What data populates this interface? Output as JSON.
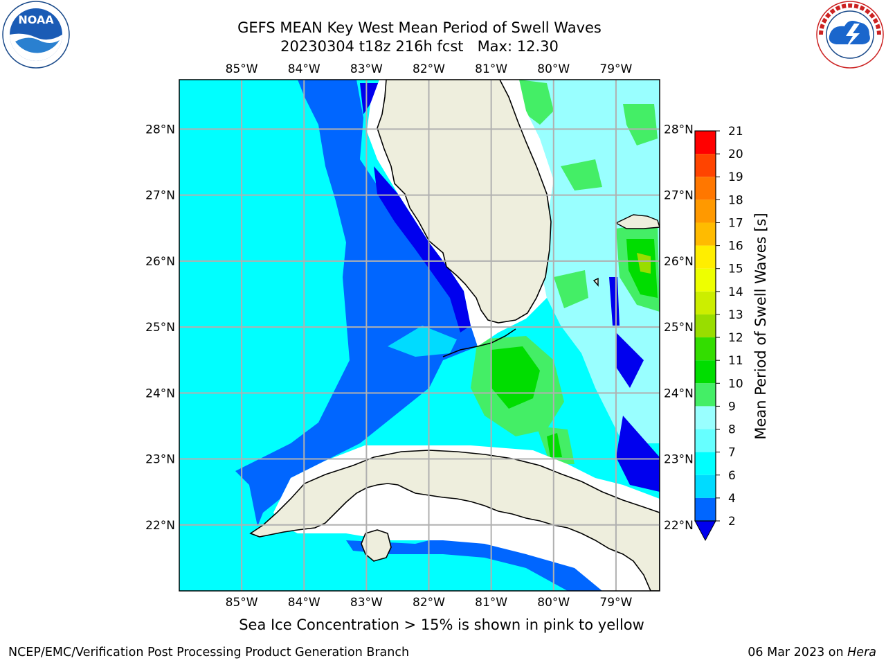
{
  "title_line1": "GEFS MEAN Key West Mean Period of Swell Waves",
  "title_line2": "20230304 t18z 216h fcst   Max: 12.30",
  "map": {
    "lon_labels": [
      "85°W",
      "84°W",
      "83°W",
      "82°W",
      "81°W",
      "80°W",
      "79°W"
    ],
    "lon_values": [
      -85,
      -84,
      -83,
      -82,
      -81,
      -80,
      -79
    ],
    "lat_labels": [
      "28°N",
      "27°N",
      "26°N",
      "25°N",
      "24°N",
      "23°N",
      "22°N"
    ],
    "lat_values": [
      28,
      27,
      26,
      25,
      24,
      23,
      22
    ],
    "lon_range": [
      -86,
      -78.3
    ],
    "lat_range": [
      21,
      28.75
    ],
    "land_color": "#eeeedd",
    "grid_color": "#b0b0b0"
  },
  "colorbar": {
    "label": "Mean Period of Swell Waves [s]",
    "ticks": [
      "2",
      "4",
      "6",
      "7",
      "8",
      "9",
      "10",
      "11",
      "12",
      "13",
      "14",
      "15",
      "16",
      "17",
      "18",
      "19",
      "20",
      "21"
    ],
    "bins": [
      {
        "from": 2,
        "to": 4,
        "color": "#0066ff"
      },
      {
        "from": 4,
        "to": 6,
        "color": "#00dbff"
      },
      {
        "from": 6,
        "to": 7,
        "color": "#00ffff"
      },
      {
        "from": 7,
        "to": 8,
        "color": "#66ffff"
      },
      {
        "from": 8,
        "to": 9,
        "color": "#99ffff"
      },
      {
        "from": 9,
        "to": 10,
        "color": "#44ee66"
      },
      {
        "from": 10,
        "to": 11,
        "color": "#00dd00"
      },
      {
        "from": 11,
        "to": 12,
        "color": "#33dd00"
      },
      {
        "from": 12,
        "to": 13,
        "color": "#99dd00"
      },
      {
        "from": 13,
        "to": 14,
        "color": "#ccee00"
      },
      {
        "from": 14,
        "to": 15,
        "color": "#eeff00"
      },
      {
        "from": 15,
        "to": 16,
        "color": "#ffee00"
      },
      {
        "from": 16,
        "to": 17,
        "color": "#ffbb00"
      },
      {
        "from": 17,
        "to": 18,
        "color": "#ff9900"
      },
      {
        "from": 18,
        "to": 19,
        "color": "#ff7700"
      },
      {
        "from": 19,
        "to": 20,
        "color": "#ff4400"
      },
      {
        "from": 20,
        "to": 21,
        "color": "#ff0000"
      }
    ],
    "under_color": "#0000ee"
  },
  "caption": "Sea Ice Concentration > 15% is shown in pink to yellow",
  "footer_left": "NCEP/EMC/Verification Post Processing Product Generation Branch",
  "footer_right_date": "06 Mar 2023 on ",
  "footer_right_host": "Hera",
  "logos": {
    "left": {
      "icon": "noaa-logo",
      "text": "NOAA"
    },
    "right": {
      "icon": "nws-logo",
      "text": "NATIONAL WEATHER SERVICE"
    }
  }
}
